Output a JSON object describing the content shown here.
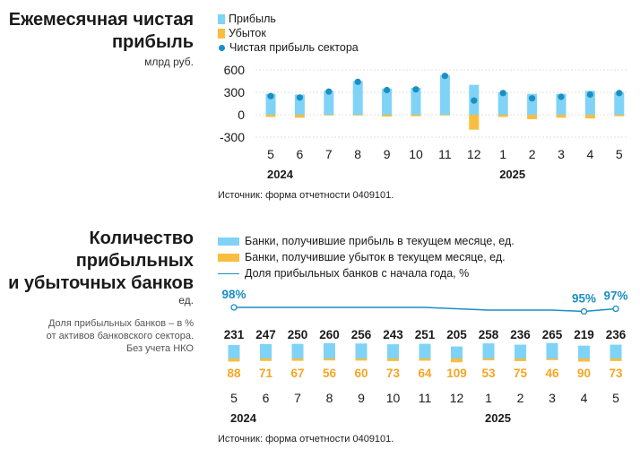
{
  "colors": {
    "profit": "#7fd3f7",
    "loss": "#f9bd3f",
    "dot": "#1a8fc4",
    "line": "#1a8fc4",
    "loss_label": "#f5a623"
  },
  "chart1": {
    "title_line1": "Ежемесячная чистая",
    "title_line2": "прибыль",
    "unit": "млрд руб.",
    "legend": {
      "profit": "Прибыль",
      "loss": "Убыток",
      "net": "Чистая прибыль сектора"
    },
    "source": "Источник: форма отчетности 0409101."
  },
  "chart2": {
    "title_line1": "Количество",
    "title_line2": "прибыльных",
    "title_line3": "и убыточных банков",
    "unit": "ед.",
    "note_line1": "Доля прибыльных банков – в %",
    "note_line2": "от активов банковского сектора.",
    "note_line3": "Без учета НКО",
    "legend": {
      "profit": "Банки, получившие прибыль в текущем месяце, ед.",
      "loss": "Банки, получившие убыток в текущем месяце, ед.",
      "share": "Доля прибыльных банков с начала года, %"
    },
    "source": "Источник: форма отчетности 0409101."
  },
  "chart_data": [
    {
      "type": "bar",
      "title": "Ежемесячная чистая прибыль",
      "ylabel": "млрд руб.",
      "categories": [
        "5",
        "6",
        "7",
        "8",
        "9",
        "10",
        "11",
        "12",
        "1",
        "2",
        "3",
        "4",
        "5"
      ],
      "year_labels": [
        {
          "label": "2024",
          "index": 0
        },
        {
          "label": "2025",
          "index": 8
        }
      ],
      "yticks": [
        600,
        300,
        0,
        -300
      ],
      "ylim": [
        -300,
        600
      ],
      "series": [
        {
          "name": "Прибыль",
          "values": [
            280,
            270,
            320,
            450,
            350,
            360,
            530,
            400,
            300,
            280,
            280,
            320,
            300
          ]
        },
        {
          "name": "Убыток",
          "values": [
            -30,
            -40,
            -10,
            -10,
            -25,
            -20,
            -10,
            -200,
            -30,
            -60,
            -40,
            -50,
            -20
          ]
        },
        {
          "name": "Чистая прибыль сектора",
          "values": [
            250,
            230,
            310,
            440,
            330,
            340,
            520,
            190,
            290,
            220,
            240,
            270,
            290
          ]
        }
      ]
    },
    {
      "type": "bar",
      "title": "Количество прибыльных и убыточных банков",
      "ylabel": "ед.",
      "categories": [
        "5",
        "6",
        "7",
        "8",
        "9",
        "10",
        "11",
        "12",
        "1",
        "2",
        "3",
        "4",
        "5"
      ],
      "year_labels": [
        {
          "label": "2024",
          "index": 0
        },
        {
          "label": "2025",
          "index": 8
        }
      ],
      "series": [
        {
          "name": "Банки, получившие прибыль в текущем месяце, ед.",
          "values": [
            231,
            247,
            250,
            260,
            256,
            243,
            251,
            205,
            258,
            236,
            265,
            219,
            236
          ]
        },
        {
          "name": "Банки, получившие убыток в текущем месяце, ед.",
          "values": [
            88,
            71,
            67,
            56,
            60,
            73,
            64,
            109,
            53,
            75,
            46,
            90,
            73
          ]
        },
        {
          "name": "Доля прибыльных банков с начала года, %",
          "values": [
            98,
            98,
            98,
            98,
            98,
            98,
            98,
            97,
            96,
            96,
            96,
            95,
            97
          ]
        }
      ],
      "annotations": [
        {
          "index": 0,
          "label": "98%"
        },
        {
          "index": 11,
          "label": "95%"
        },
        {
          "index": 12,
          "label": "97%"
        }
      ]
    }
  ]
}
